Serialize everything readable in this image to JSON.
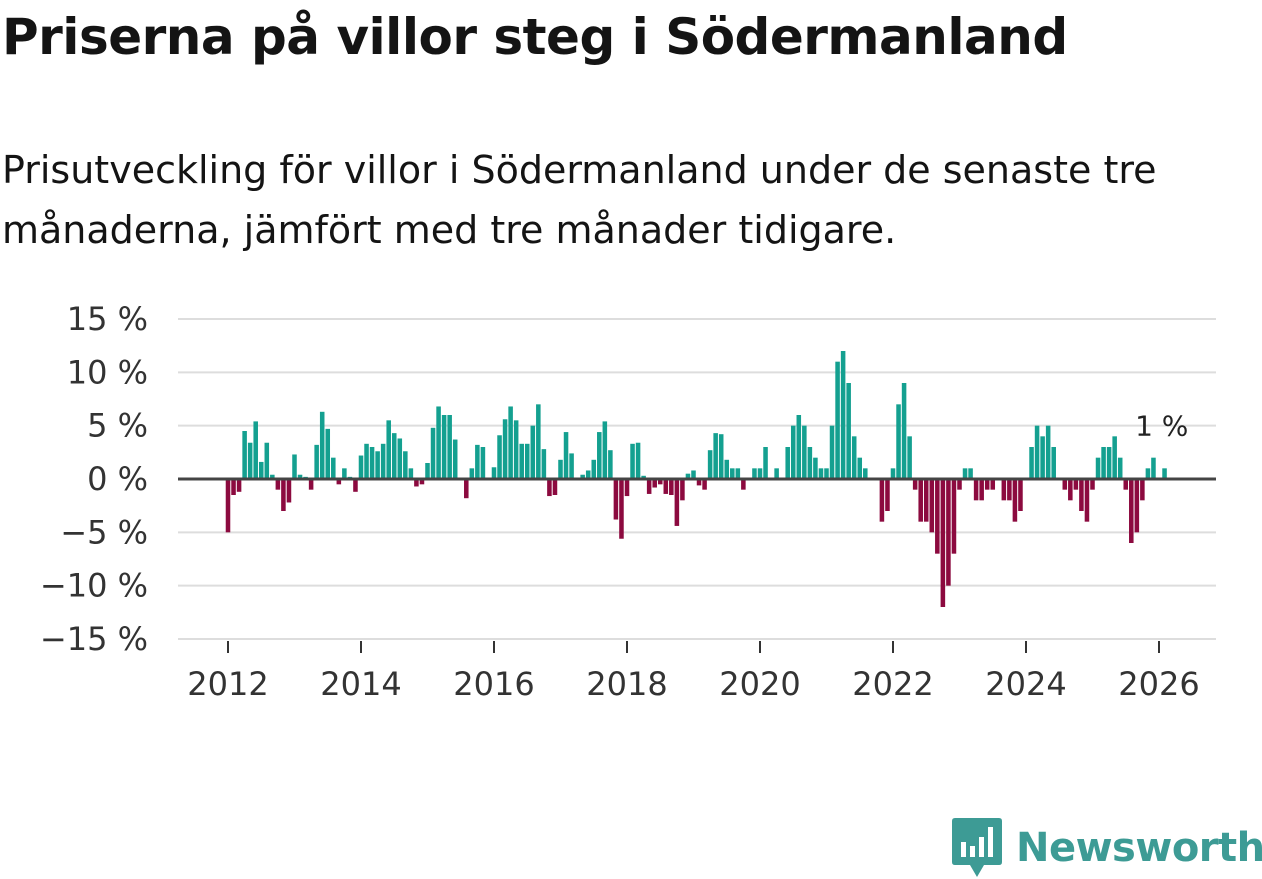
{
  "header": {
    "title": "Priserna på villor steg i Södermanland",
    "subtitle": "Prisutveckling för villor i Södermanland under de senaste tre månaderna, jämfört med tre månader tidigare."
  },
  "brand": {
    "name": "Newsworthy",
    "color": "#3d9b95"
  },
  "colors": {
    "positive": "#14a090",
    "negative": "#8c0a3f",
    "zero_line": "#444444",
    "grid": "#dddddd"
  },
  "chart_data": {
    "type": "bar",
    "title": "Priserna på villor steg i Södermanland",
    "subtitle": "Prisutveckling för villor i Södermanland under de senaste tre månaderna, jämfört med tre månader tidigare.",
    "xlabel": "",
    "ylabel": "",
    "ylim": [
      -15,
      15
    ],
    "y_ticks": [
      15,
      10,
      5,
      0,
      -5,
      -10,
      -15
    ],
    "y_tick_labels": [
      "15 %",
      "10 %",
      "5 %",
      "0 %",
      "−5 %",
      "−10 %",
      "−15 %"
    ],
    "x_tick_labels": [
      "2012",
      "2014",
      "2016",
      "2018",
      "2020",
      "2022",
      "2024",
      "2026"
    ],
    "x_tick_years": [
      2012,
      2014,
      2016,
      2018,
      2020,
      2022,
      2024,
      2026
    ],
    "grid": true,
    "start": "2012-01",
    "frequency": "monthly",
    "series": [
      {
        "name": "Prisutveckling",
        "values": [
          -5,
          -1.5,
          -1.2,
          4.5,
          3.4,
          5.4,
          1.6,
          3.4,
          0.4,
          -1,
          -3,
          -2.2,
          2.3,
          0.4,
          0.2,
          -1,
          3.2,
          6.3,
          4.7,
          2,
          -0.5,
          1,
          0.2,
          -1.2,
          2.2,
          3.3,
          3,
          2.6,
          3.3,
          5.5,
          4.3,
          3.8,
          2.6,
          1,
          -0.7,
          -0.5,
          1.5,
          4.8,
          6.8,
          6,
          6,
          3.7,
          0,
          -1.8,
          1,
          3.2,
          3,
          0,
          1.1,
          4.1,
          5.6,
          6.8,
          5.5,
          3.3,
          3.3,
          5,
          7,
          2.8,
          -1.6,
          -1.5,
          1.8,
          4.4,
          2.4,
          0,
          0.4,
          0.8,
          1.8,
          4.4,
          5.4,
          2.7,
          -3.8,
          -5.6,
          -1.6,
          3.3,
          3.4,
          0.3,
          -1.4,
          -0.8,
          -0.5,
          -1.4,
          -1.5,
          -4.4,
          -2,
          0.5,
          0.8,
          -0.6,
          -1,
          2.7,
          4.3,
          4.2,
          1.8,
          1,
          1,
          -1,
          0,
          1,
          1,
          3,
          0,
          1,
          0,
          3,
          5,
          6,
          5,
          3,
          2,
          1,
          1,
          5,
          11,
          12,
          9,
          4,
          2,
          1,
          0,
          0,
          -4,
          -3,
          1,
          7,
          9,
          4,
          -1,
          -4,
          -4,
          -5,
          -7,
          -12,
          -10,
          -7,
          -1,
          1,
          1,
          -2,
          -2,
          -1,
          -1,
          0,
          -2,
          -2,
          -4,
          -3,
          0,
          3,
          5,
          4,
          5,
          3,
          0,
          -1,
          -2,
          -1,
          -3,
          -4,
          -1,
          2,
          3,
          3,
          4,
          2,
          -1,
          -6,
          -5,
          -2,
          1,
          2,
          0,
          1
        ]
      }
    ],
    "annotation": {
      "text": "1 %",
      "index": 170,
      "value": 1
    }
  }
}
